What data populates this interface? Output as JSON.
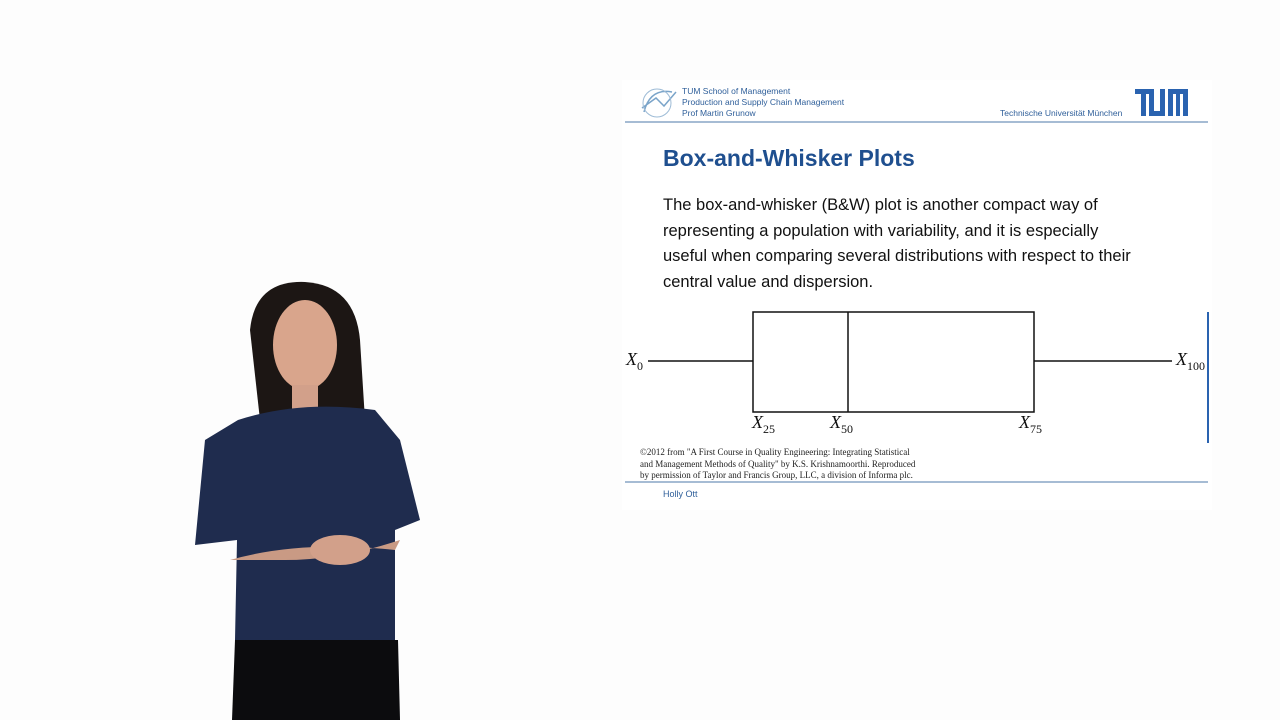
{
  "slide": {
    "header": {
      "lines": [
        "TUM School of Management",
        "Production and Supply Chain Management",
        "Prof Martin Grunow"
      ],
      "university": "Technische Universität München"
    },
    "title": "Box-and-Whisker Plots",
    "body_lines": [
      "The box-and-whisker (B&W) plot is another compact way of",
      "representing a population with variability, and it is especially",
      "useful when comparing several distributions with respect to their",
      "central value and dispersion."
    ],
    "diagram_labels": [
      {
        "base": "X",
        "sub": "0"
      },
      {
        "base": "X",
        "sub": "25"
      },
      {
        "base": "X",
        "sub": "50"
      },
      {
        "base": "X",
        "sub": "75"
      },
      {
        "base": "X",
        "sub": "100"
      }
    ],
    "citation_lines": [
      "©2012 from \"A First Course in Quality Engineering: Integrating Statistical",
      "and Management Methods of Quality\" by K.S. Krishnamoorthi. Reproduced",
      "by permission of Taylor and Francis Group, LLC, a division of Informa plc."
    ],
    "footer": "Holly Ott"
  }
}
